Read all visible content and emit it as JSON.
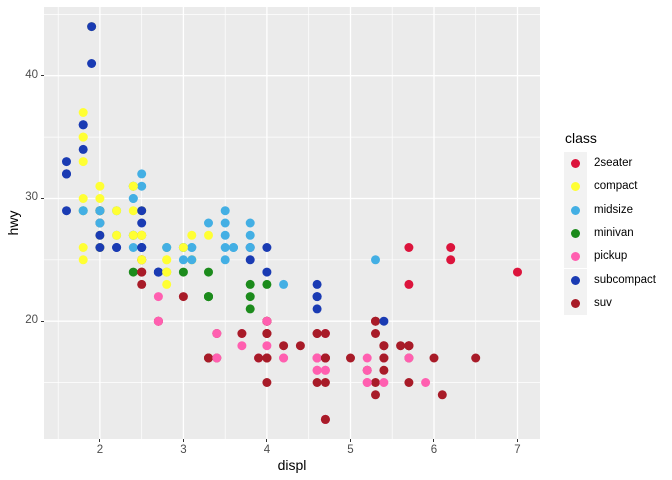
{
  "axes": {
    "x": {
      "label": "displ",
      "ticks": [
        2,
        3,
        4,
        5,
        6,
        7
      ],
      "minor_ticks": [
        1.5,
        2.5,
        3.5,
        4.5,
        5.5,
        6.5
      ],
      "range": [
        1.33,
        7.27
      ]
    },
    "y": {
      "label": "hwy",
      "ticks": [
        20,
        30,
        40
      ],
      "minor_ticks": [
        15,
        25,
        35,
        45
      ],
      "range": [
        10.4,
        45.6
      ]
    }
  },
  "legend": {
    "title": "class",
    "items": [
      {
        "label": "2seater",
        "color": "#DC143C"
      },
      {
        "label": "compact",
        "color": "#FFFF33"
      },
      {
        "label": "midsize",
        "color": "#43AFE4"
      },
      {
        "label": "minivan",
        "color": "#1C8B1C"
      },
      {
        "label": "pickup",
        "color": "#FF5FB0"
      },
      {
        "label": "subcompact",
        "color": "#1A3BB3"
      },
      {
        "label": "suv",
        "color": "#A81B28"
      }
    ]
  },
  "style": {
    "panel_bg": "#EBEBEB",
    "grid_color": "#FFFFFF",
    "tick_text_color": "#4D4D4D",
    "tick_mark_color": "#333333",
    "legend_key_bg": "#F2F2F2",
    "point_radius": 4.5
  },
  "chart_data": {
    "type": "scatter",
    "xlabel": "displ",
    "ylabel": "hwy",
    "legend_title": "class",
    "x_range": [
      1.33,
      7.27
    ],
    "y_range": [
      10.4,
      45.6
    ],
    "x_ticks": [
      2,
      3,
      4,
      5,
      6,
      7
    ],
    "y_ticks": [
      20,
      30,
      40
    ],
    "x_minor": [
      1.5,
      2.5,
      3.5,
      4.5,
      5.5,
      6.5
    ],
    "y_minor": [
      15,
      25,
      35,
      45
    ],
    "grid": true,
    "legend_position": "right",
    "points": [
      [
        1.8,
        29,
        "compact"
      ],
      [
        1.8,
        29,
        "compact"
      ],
      [
        2.0,
        31,
        "compact"
      ],
      [
        2.0,
        30,
        "compact"
      ],
      [
        2.8,
        26,
        "compact"
      ],
      [
        2.8,
        26,
        "compact"
      ],
      [
        3.1,
        27,
        "compact"
      ],
      [
        1.8,
        26,
        "compact"
      ],
      [
        1.8,
        25,
        "compact"
      ],
      [
        2.0,
        28,
        "compact"
      ],
      [
        2.0,
        27,
        "compact"
      ],
      [
        2.8,
        25,
        "compact"
      ],
      [
        2.8,
        25,
        "compact"
      ],
      [
        3.1,
        25,
        "compact"
      ],
      [
        3.1,
        25,
        "compact"
      ],
      [
        2.8,
        24,
        "midsize"
      ],
      [
        3.1,
        25,
        "midsize"
      ],
      [
        4.2,
        23,
        "midsize"
      ],
      [
        5.3,
        20,
        "suv"
      ],
      [
        5.3,
        15,
        "suv"
      ],
      [
        5.3,
        20,
        "suv"
      ],
      [
        5.7,
        17,
        "suv"
      ],
      [
        6.0,
        17,
        "suv"
      ],
      [
        5.7,
        26,
        "2seater"
      ],
      [
        5.7,
        23,
        "2seater"
      ],
      [
        6.2,
        26,
        "2seater"
      ],
      [
        6.2,
        25,
        "2seater"
      ],
      [
        7.0,
        24,
        "2seater"
      ],
      [
        5.3,
        19,
        "suv"
      ],
      [
        5.3,
        14,
        "suv"
      ],
      [
        5.7,
        15,
        "suv"
      ],
      [
        6.5,
        17,
        "suv"
      ],
      [
        2.4,
        27,
        "midsize"
      ],
      [
        2.4,
        30,
        "midsize"
      ],
      [
        3.1,
        26,
        "midsize"
      ],
      [
        3.5,
        29,
        "midsize"
      ],
      [
        3.6,
        26,
        "midsize"
      ],
      [
        2.4,
        24,
        "minivan"
      ],
      [
        3.0,
        24,
        "minivan"
      ],
      [
        3.3,
        22,
        "minivan"
      ],
      [
        3.3,
        22,
        "minivan"
      ],
      [
        3.3,
        17,
        "minivan"
      ],
      [
        3.3,
        24,
        "minivan"
      ],
      [
        3.3,
        22,
        "minivan"
      ],
      [
        3.8,
        22,
        "minivan"
      ],
      [
        3.8,
        21,
        "minivan"
      ],
      [
        3.8,
        23,
        "minivan"
      ],
      [
        4.0,
        23,
        "minivan"
      ],
      [
        3.7,
        19,
        "pickup"
      ],
      [
        3.7,
        18,
        "pickup"
      ],
      [
        3.9,
        17,
        "pickup"
      ],
      [
        3.9,
        17,
        "pickup"
      ],
      [
        4.7,
        19,
        "pickup"
      ],
      [
        4.7,
        19,
        "pickup"
      ],
      [
        4.7,
        12,
        "pickup"
      ],
      [
        5.2,
        17,
        "pickup"
      ],
      [
        5.2,
        15,
        "pickup"
      ],
      [
        3.9,
        17,
        "suv"
      ],
      [
        4.7,
        17,
        "suv"
      ],
      [
        4.7,
        12,
        "suv"
      ],
      [
        4.7,
        17,
        "suv"
      ],
      [
        5.2,
        16,
        "suv"
      ],
      [
        5.7,
        18,
        "suv"
      ],
      [
        4.7,
        16,
        "pickup"
      ],
      [
        4.7,
        12,
        "pickup"
      ],
      [
        4.7,
        17,
        "pickup"
      ],
      [
        4.7,
        17,
        "pickup"
      ],
      [
        4.7,
        16,
        "pickup"
      ],
      [
        5.2,
        15,
        "pickup"
      ],
      [
        5.2,
        16,
        "pickup"
      ],
      [
        5.7,
        17,
        "pickup"
      ],
      [
        5.9,
        15,
        "pickup"
      ],
      [
        4.6,
        17,
        "suv"
      ],
      [
        5.4,
        17,
        "suv"
      ],
      [
        5.4,
        18,
        "suv"
      ],
      [
        4.0,
        17,
        "suv"
      ],
      [
        4.0,
        19,
        "suv"
      ],
      [
        4.0,
        17,
        "suv"
      ],
      [
        4.0,
        19,
        "suv"
      ],
      [
        4.6,
        19,
        "suv"
      ],
      [
        4.2,
        17,
        "pickup"
      ],
      [
        4.2,
        17,
        "pickup"
      ],
      [
        4.6,
        16,
        "pickup"
      ],
      [
        4.6,
        16,
        "pickup"
      ],
      [
        4.6,
        17,
        "pickup"
      ],
      [
        4.6,
        17,
        "pickup"
      ],
      [
        5.4,
        15,
        "pickup"
      ],
      [
        5.4,
        17,
        "pickup"
      ],
      [
        3.8,
        26,
        "subcompact"
      ],
      [
        3.8,
        25,
        "subcompact"
      ],
      [
        4.0,
        26,
        "subcompact"
      ],
      [
        4.0,
        24,
        "subcompact"
      ],
      [
        4.6,
        21,
        "subcompact"
      ],
      [
        4.6,
        22,
        "subcompact"
      ],
      [
        4.6,
        23,
        "subcompact"
      ],
      [
        4.6,
        22,
        "subcompact"
      ],
      [
        5.4,
        20,
        "subcompact"
      ],
      [
        1.6,
        33,
        "subcompact"
      ],
      [
        1.6,
        32,
        "subcompact"
      ],
      [
        1.6,
        32,
        "subcompact"
      ],
      [
        1.6,
        29,
        "subcompact"
      ],
      [
        1.6,
        32,
        "subcompact"
      ],
      [
        1.8,
        34,
        "subcompact"
      ],
      [
        1.8,
        36,
        "subcompact"
      ],
      [
        1.8,
        36,
        "subcompact"
      ],
      [
        2.0,
        29,
        "subcompact"
      ],
      [
        2.4,
        26,
        "midsize"
      ],
      [
        2.4,
        27,
        "midsize"
      ],
      [
        2.4,
        30,
        "midsize"
      ],
      [
        2.4,
        31,
        "midsize"
      ],
      [
        2.5,
        26,
        "midsize"
      ],
      [
        2.5,
        26,
        "midsize"
      ],
      [
        3.3,
        28,
        "midsize"
      ],
      [
        2.0,
        26,
        "subcompact"
      ],
      [
        2.0,
        29,
        "subcompact"
      ],
      [
        2.0,
        28,
        "subcompact"
      ],
      [
        2.0,
        27,
        "subcompact"
      ],
      [
        2.7,
        24,
        "subcompact"
      ],
      [
        2.7,
        24,
        "subcompact"
      ],
      [
        2.7,
        24,
        "subcompact"
      ],
      [
        3.0,
        22,
        "suv"
      ],
      [
        3.7,
        19,
        "suv"
      ],
      [
        4.0,
        20,
        "suv"
      ],
      [
        4.7,
        17,
        "suv"
      ],
      [
        4.7,
        12,
        "suv"
      ],
      [
        4.7,
        19,
        "suv"
      ],
      [
        5.7,
        18,
        "suv"
      ],
      [
        6.1,
        14,
        "suv"
      ],
      [
        4.0,
        15,
        "suv"
      ],
      [
        4.2,
        18,
        "suv"
      ],
      [
        4.4,
        18,
        "suv"
      ],
      [
        4.6,
        15,
        "suv"
      ],
      [
        5.4,
        17,
        "suv"
      ],
      [
        5.4,
        16,
        "suv"
      ],
      [
        5.4,
        18,
        "suv"
      ],
      [
        4.0,
        17,
        "suv"
      ],
      [
        4.0,
        19,
        "suv"
      ],
      [
        4.6,
        19,
        "suv"
      ],
      [
        5.0,
        17,
        "suv"
      ],
      [
        2.4,
        29,
        "compact"
      ],
      [
        2.4,
        27,
        "compact"
      ],
      [
        2.5,
        31,
        "midsize"
      ],
      [
        2.5,
        32,
        "midsize"
      ],
      [
        3.5,
        27,
        "midsize"
      ],
      [
        3.5,
        26,
        "midsize"
      ],
      [
        3.0,
        26,
        "midsize"
      ],
      [
        3.0,
        25,
        "midsize"
      ],
      [
        3.5,
        25,
        "midsize"
      ],
      [
        3.3,
        17,
        "suv"
      ],
      [
        3.3,
        17,
        "suv"
      ],
      [
        4.0,
        20,
        "suv"
      ],
      [
        5.6,
        18,
        "suv"
      ],
      [
        3.1,
        26,
        "midsize"
      ],
      [
        3.8,
        26,
        "midsize"
      ],
      [
        3.8,
        27,
        "midsize"
      ],
      [
        3.8,
        28,
        "midsize"
      ],
      [
        5.3,
        25,
        "midsize"
      ],
      [
        2.5,
        25,
        "suv"
      ],
      [
        2.5,
        24,
        "suv"
      ],
      [
        2.5,
        27,
        "suv"
      ],
      [
        2.5,
        25,
        "suv"
      ],
      [
        2.5,
        23,
        "suv"
      ],
      [
        2.5,
        24,
        "suv"
      ],
      [
        2.2,
        26,
        "subcompact"
      ],
      [
        2.2,
        26,
        "subcompact"
      ],
      [
        2.5,
        26,
        "subcompact"
      ],
      [
        2.5,
        26,
        "subcompact"
      ],
      [
        2.5,
        25,
        "compact"
      ],
      [
        2.5,
        27,
        "compact"
      ],
      [
        2.5,
        25,
        "compact"
      ],
      [
        2.5,
        27,
        "compact"
      ],
      [
        2.7,
        20,
        "suv"
      ],
      [
        2.7,
        20,
        "suv"
      ],
      [
        3.4,
        19,
        "suv"
      ],
      [
        3.4,
        17,
        "suv"
      ],
      [
        4.0,
        20,
        "suv"
      ],
      [
        4.7,
        17,
        "suv"
      ],
      [
        2.2,
        29,
        "midsize"
      ],
      [
        2.2,
        27,
        "midsize"
      ],
      [
        2.4,
        31,
        "midsize"
      ],
      [
        2.4,
        31,
        "midsize"
      ],
      [
        3.0,
        26,
        "midsize"
      ],
      [
        3.0,
        26,
        "midsize"
      ],
      [
        3.5,
        28,
        "midsize"
      ],
      [
        2.2,
        27,
        "compact"
      ],
      [
        2.2,
        29,
        "compact"
      ],
      [
        2.4,
        31,
        "compact"
      ],
      [
        2.4,
        31,
        "compact"
      ],
      [
        3.0,
        26,
        "compact"
      ],
      [
        3.3,
        27,
        "compact"
      ],
      [
        1.8,
        30,
        "compact"
      ],
      [
        1.8,
        33,
        "compact"
      ],
      [
        1.8,
        35,
        "compact"
      ],
      [
        1.8,
        37,
        "compact"
      ],
      [
        1.8,
        35,
        "compact"
      ],
      [
        4.7,
        15,
        "suv"
      ],
      [
        5.7,
        18,
        "suv"
      ],
      [
        2.7,
        20,
        "pickup"
      ],
      [
        2.7,
        20,
        "pickup"
      ],
      [
        2.7,
        22,
        "pickup"
      ],
      [
        3.4,
        17,
        "pickup"
      ],
      [
        3.4,
        19,
        "pickup"
      ],
      [
        4.0,
        18,
        "pickup"
      ],
      [
        4.0,
        20,
        "pickup"
      ],
      [
        2.0,
        29,
        "compact"
      ],
      [
        2.0,
        26,
        "compact"
      ],
      [
        2.0,
        29,
        "compact"
      ],
      [
        2.0,
        29,
        "compact"
      ],
      [
        2.8,
        24,
        "compact"
      ],
      [
        1.9,
        44,
        "compact"
      ],
      [
        2.0,
        29,
        "compact"
      ],
      [
        2.0,
        26,
        "compact"
      ],
      [
        2.0,
        29,
        "compact"
      ],
      [
        2.0,
        29,
        "compact"
      ],
      [
        2.5,
        29,
        "compact"
      ],
      [
        2.5,
        29,
        "compact"
      ],
      [
        2.8,
        23,
        "compact"
      ],
      [
        2.8,
        24,
        "compact"
      ],
      [
        1.9,
        44,
        "subcompact"
      ],
      [
        1.9,
        41,
        "subcompact"
      ],
      [
        2.0,
        29,
        "subcompact"
      ],
      [
        2.0,
        26,
        "subcompact"
      ],
      [
        2.5,
        28,
        "subcompact"
      ],
      [
        2.5,
        29,
        "subcompact"
      ],
      [
        1.8,
        29,
        "midsize"
      ],
      [
        1.8,
        29,
        "midsize"
      ],
      [
        2.0,
        28,
        "midsize"
      ],
      [
        2.0,
        29,
        "midsize"
      ],
      [
        2.8,
        26,
        "midsize"
      ],
      [
        2.8,
        26,
        "midsize"
      ],
      [
        3.6,
        26,
        "midsize"
      ]
    ]
  }
}
